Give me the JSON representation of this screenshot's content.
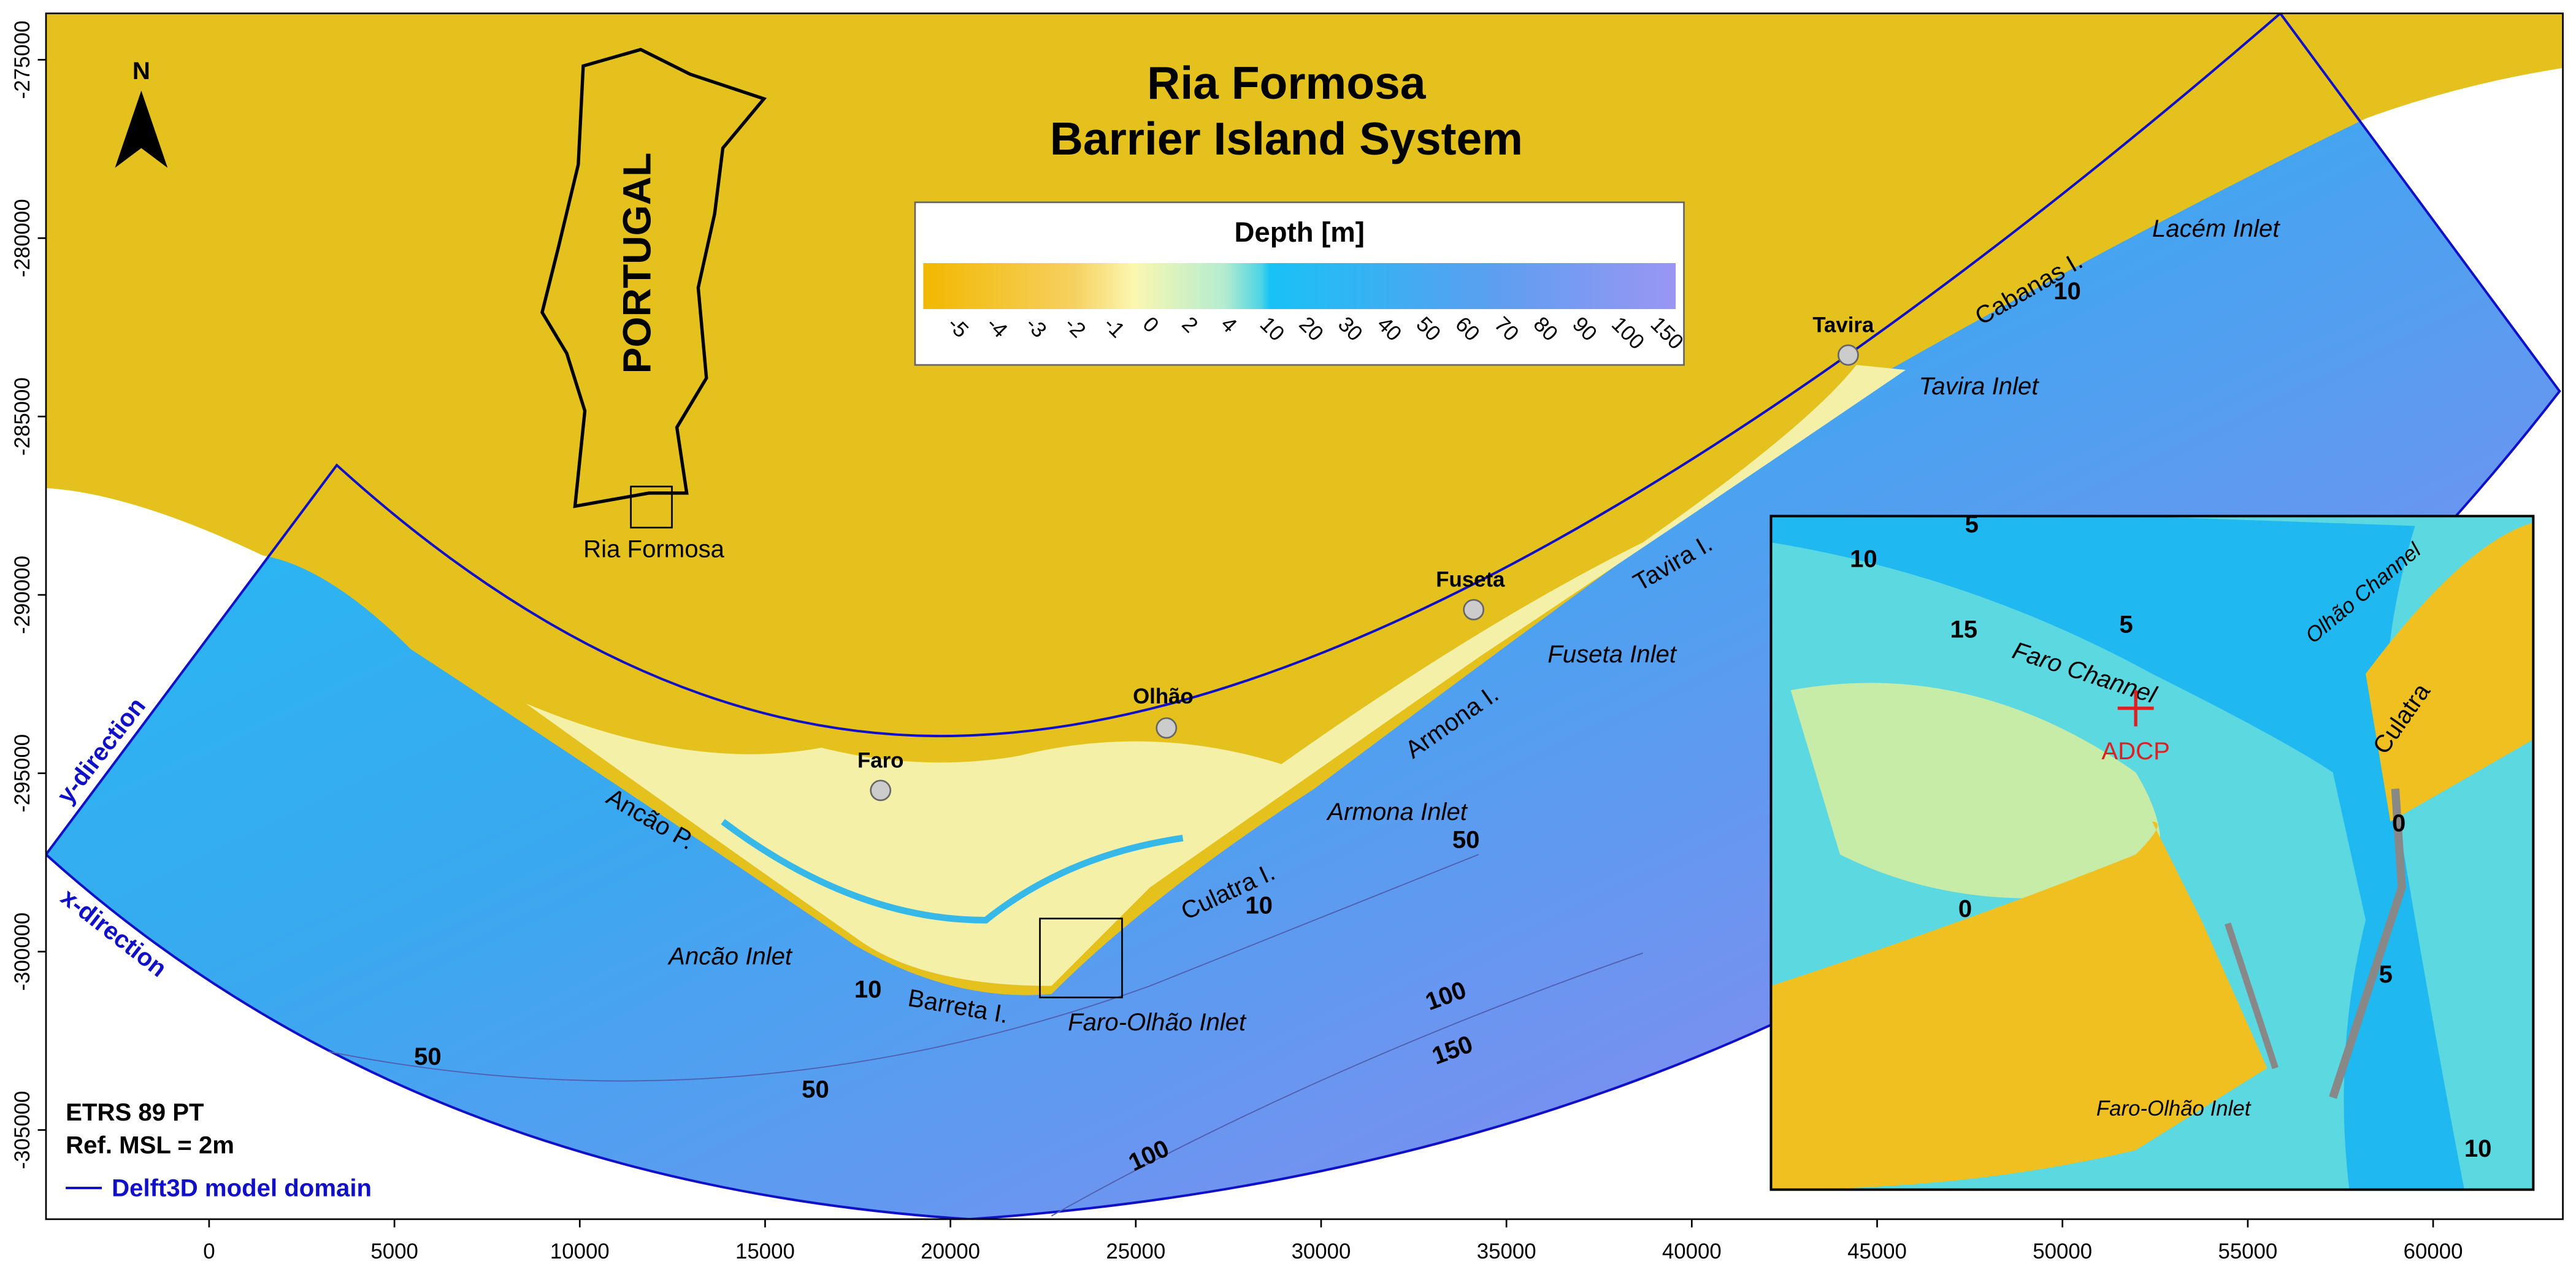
{
  "title": [
    "Ria Formosa",
    "Barrier Island System"
  ],
  "north": "N",
  "locator": {
    "country": "PORTUGAL",
    "site": "Ria Formosa"
  },
  "colorbar": {
    "title": "Depth [m]",
    "labels": [
      -5,
      -4,
      -3,
      -2,
      -1,
      0,
      2,
      4,
      10,
      20,
      30,
      40,
      50,
      60,
      70,
      80,
      90,
      100,
      150
    ]
  },
  "places": [
    "Faro",
    "Olhão",
    "Fuseta",
    "Tavira",
    "Ancão P.",
    "Ancão Inlet",
    "Barreta I.",
    "Faro-Olhão Inlet",
    "Culatra I.",
    "Armona Inlet",
    "Armona I.",
    "Fuseta Inlet",
    "Tavira I.",
    "Tavira Inlet",
    "Cabanas I.",
    "Lacém Inlet"
  ],
  "directions": [
    "y-direction",
    "x-direction"
  ],
  "contour_labels": [
    10,
    10,
    50,
    50,
    50,
    100,
    150,
    100,
    10
  ],
  "inset": {
    "labels": [
      "Faro Channel",
      "Olhão Channel",
      "Culatra",
      "ADCP",
      "Faro-Olhão Inlet"
    ],
    "contour_labels": [
      5,
      10,
      15,
      5,
      0,
      0,
      5,
      10
    ]
  },
  "info": [
    "ETRS 89 PT",
    "Ref. MSL = 2m"
  ],
  "legend": "Delft3D model domain",
  "axes": {
    "xlim": [
      -4400,
      63500
    ],
    "ylim": [
      -307500,
      -273700
    ],
    "xticks": [
      0,
      5000,
      10000,
      15000,
      20000,
      25000,
      30000,
      35000,
      40000,
      45000,
      50000,
      55000,
      60000
    ],
    "yticks": [
      -275000,
      -280000,
      -285000,
      -290000,
      -295000,
      -300000,
      -305000
    ]
  }
}
